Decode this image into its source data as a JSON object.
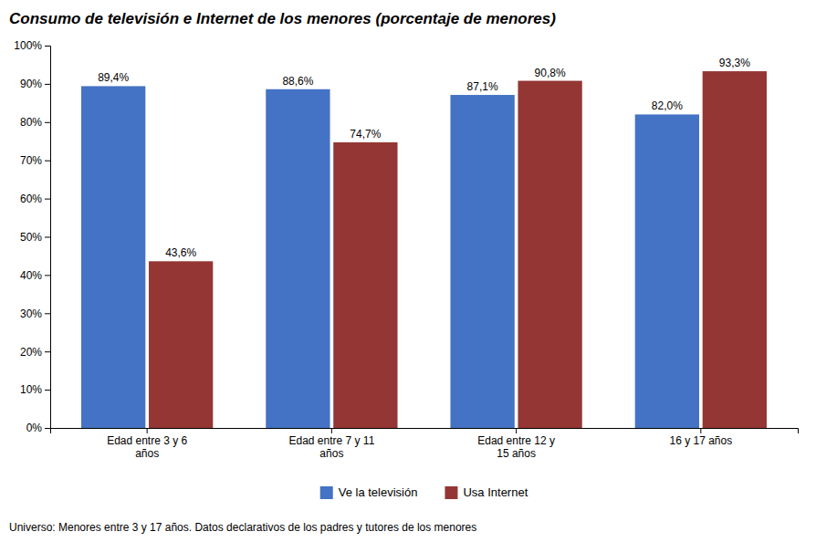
{
  "chart_data": {
    "type": "bar",
    "title": "Consumo de televisión e Internet de los menores (porcentaje de menores)",
    "categories": [
      "Edad entre 3 y 6\naños",
      "Edad entre 7 y 11\naños",
      "Edad entre 12 y\n15 años",
      "16 y 17 años"
    ],
    "series": [
      {
        "name": "Ve la televisión",
        "color": "#4472C4",
        "values": [
          89.4,
          88.6,
          87.1,
          82.0
        ],
        "value_labels": [
          "89,4%",
          "88,6%",
          "87,1%",
          "82,0%"
        ]
      },
      {
        "name": "Usa Internet",
        "color": "#943634",
        "values": [
          43.6,
          74.7,
          90.8,
          93.3
        ],
        "value_labels": [
          "43,6%",
          "74,7%",
          "90,8%",
          "93,3%"
        ]
      }
    ],
    "ylim": [
      0,
      100
    ],
    "yticks": [
      {
        "value": 0,
        "label": "0%"
      },
      {
        "value": 10,
        "label": "10%"
      },
      {
        "value": 20,
        "label": "20%"
      },
      {
        "value": 30,
        "label": "30%"
      },
      {
        "value": 40,
        "label": "40%"
      },
      {
        "value": 50,
        "label": "50%"
      },
      {
        "value": 60,
        "label": "60%"
      },
      {
        "value": 70,
        "label": "70%"
      },
      {
        "value": 80,
        "label": "80%"
      },
      {
        "value": 90,
        "label": "90%"
      },
      {
        "value": 100,
        "label": "100%"
      }
    ],
    "grid": false,
    "legend": "bottom",
    "data_labels": true,
    "annotations": [
      "Universo: Menores entre 3 y 17 años. Datos declarativos de los padres y tutores de los menores"
    ]
  }
}
